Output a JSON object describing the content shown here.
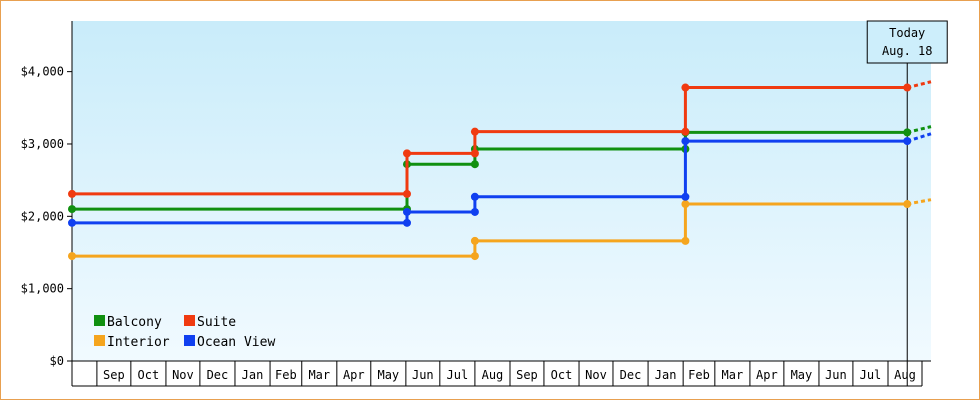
{
  "chart_data": {
    "type": "line",
    "style": "step",
    "title": "",
    "xlabel": "",
    "ylabel": "",
    "ylim": [
      0,
      4700
    ],
    "yticks": [
      0,
      1000,
      2000,
      3000,
      4000
    ],
    "ytick_labels": [
      "$0",
      "$1,000",
      "$2,000",
      "$3,000",
      "$4,000"
    ],
    "x_range": [
      "2021-08-10",
      "2023-09-08"
    ],
    "x_month_labels": [
      "Sep",
      "Oct",
      "Nov",
      "Dec",
      "Jan",
      "Feb",
      "Mar",
      "Apr",
      "May",
      "Jun",
      "Jul",
      "Aug",
      "Sep",
      "Oct",
      "Nov",
      "Dec",
      "Jan",
      "Feb",
      "Mar",
      "Apr",
      "May",
      "Jun",
      "Jul",
      "Aug"
    ],
    "x_month_starts": [
      "2021-09-01",
      "2021-10-01",
      "2021-11-01",
      "2021-12-01",
      "2022-01-01",
      "2022-02-01",
      "2022-03-01",
      "2022-04-01",
      "2022-05-01",
      "2022-06-01",
      "2022-07-01",
      "2022-08-01",
      "2022-09-01",
      "2022-10-01",
      "2022-11-01",
      "2022-12-01",
      "2023-01-01",
      "2023-02-01",
      "2023-03-01",
      "2023-04-01",
      "2023-05-01",
      "2023-06-01",
      "2023-07-01",
      "2023-08-01"
    ],
    "today": {
      "label_line1": "Today",
      "label_line2": "Aug. 18",
      "date": "2023-08-18"
    },
    "legend_position": "bottom-left",
    "grid": false,
    "background": {
      "top": "#c9ecfa",
      "bottom": "#f1faff"
    },
    "series": [
      {
        "name": "Balcony",
        "color": "#109010",
        "points": [
          [
            "2021-08-10",
            2100
          ],
          [
            "2022-06-02",
            2100
          ],
          [
            "2022-06-02",
            2720
          ],
          [
            "2022-08-01",
            2720
          ],
          [
            "2022-08-01",
            2930
          ],
          [
            "2023-02-03",
            2930
          ],
          [
            "2023-02-03",
            3160
          ],
          [
            "2023-08-18",
            3160
          ]
        ],
        "projection": [
          [
            "2023-08-18",
            3160
          ],
          [
            "2023-09-08",
            3240
          ]
        ]
      },
      {
        "name": "Suite",
        "color": "#f03a10",
        "points": [
          [
            "2021-08-10",
            2310
          ],
          [
            "2022-06-02",
            2310
          ],
          [
            "2022-06-02",
            2870
          ],
          [
            "2022-08-01",
            2870
          ],
          [
            "2022-08-01",
            3170
          ],
          [
            "2023-02-03",
            3170
          ],
          [
            "2023-02-03",
            3780
          ],
          [
            "2023-08-18",
            3780
          ]
        ],
        "projection": [
          [
            "2023-08-18",
            3780
          ],
          [
            "2023-09-08",
            3860
          ]
        ]
      },
      {
        "name": "Interior",
        "color": "#f5a51e",
        "points": [
          [
            "2021-08-10",
            1450
          ],
          [
            "2022-08-01",
            1450
          ],
          [
            "2022-08-01",
            1660
          ],
          [
            "2023-02-03",
            1660
          ],
          [
            "2023-02-03",
            2170
          ],
          [
            "2023-08-18",
            2170
          ]
        ],
        "projection": [
          [
            "2023-08-18",
            2170
          ],
          [
            "2023-09-08",
            2230
          ]
        ]
      },
      {
        "name": "Ocean View",
        "color": "#1040f0",
        "points": [
          [
            "2021-08-10",
            1910
          ],
          [
            "2022-06-02",
            1910
          ],
          [
            "2022-06-02",
            2060
          ],
          [
            "2022-08-01",
            2060
          ],
          [
            "2022-08-01",
            2270
          ],
          [
            "2023-02-03",
            2270
          ],
          [
            "2023-02-03",
            3040
          ],
          [
            "2023-08-18",
            3040
          ]
        ],
        "projection": [
          [
            "2023-08-18",
            3040
          ],
          [
            "2023-09-08",
            3140
          ]
        ]
      }
    ]
  }
}
